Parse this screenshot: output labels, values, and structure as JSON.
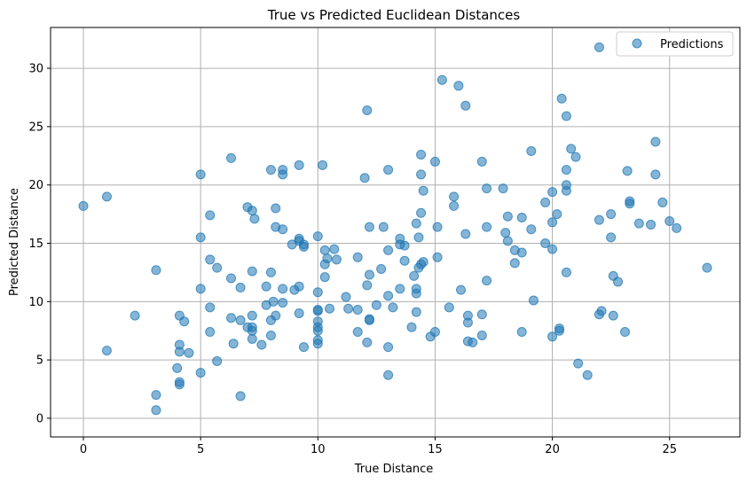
{
  "chart_data": {
    "type": "scatter",
    "title": "True vs Predicted Euclidean Distances",
    "xlabel": "True Distance",
    "ylabel": "Predicted Distance",
    "xlim": [
      -1.4,
      28.0
    ],
    "ylim": [
      -1.6,
      33.5
    ],
    "xticks": [
      0,
      5,
      10,
      15,
      20,
      25
    ],
    "yticks": [
      0,
      5,
      10,
      15,
      20,
      25,
      30
    ],
    "grid": true,
    "legend_position": "top-right",
    "marker_color": "#1f77b4",
    "series": [
      {
        "name": "Predictions",
        "points": [
          [
            0.0,
            18.2
          ],
          [
            1.0,
            19.0
          ],
          [
            1.0,
            5.8
          ],
          [
            2.2,
            8.8
          ],
          [
            3.1,
            12.7
          ],
          [
            3.1,
            2.0
          ],
          [
            3.1,
            0.7
          ],
          [
            4.0,
            4.3
          ],
          [
            4.1,
            8.8
          ],
          [
            4.1,
            6.3
          ],
          [
            4.1,
            5.7
          ],
          [
            4.1,
            3.1
          ],
          [
            4.1,
            2.9
          ],
          [
            4.3,
            8.3
          ],
          [
            4.5,
            5.6
          ],
          [
            5.0,
            20.9
          ],
          [
            5.0,
            15.5
          ],
          [
            5.0,
            11.1
          ],
          [
            5.0,
            3.9
          ],
          [
            5.4,
            17.4
          ],
          [
            5.4,
            13.6
          ],
          [
            5.4,
            9.5
          ],
          [
            5.4,
            7.4
          ],
          [
            5.7,
            12.9
          ],
          [
            5.7,
            4.9
          ],
          [
            6.3,
            22.3
          ],
          [
            6.3,
            12.0
          ],
          [
            6.3,
            8.6
          ],
          [
            6.4,
            6.4
          ],
          [
            6.7,
            11.2
          ],
          [
            6.7,
            8.4
          ],
          [
            6.7,
            1.9
          ],
          [
            7.0,
            18.1
          ],
          [
            7.0,
            7.8
          ],
          [
            7.2,
            17.8
          ],
          [
            7.2,
            12.6
          ],
          [
            7.2,
            8.8
          ],
          [
            7.2,
            7.8
          ],
          [
            7.2,
            7.5
          ],
          [
            7.2,
            6.8
          ],
          [
            7.3,
            17.1
          ],
          [
            7.6,
            6.3
          ],
          [
            7.8,
            11.3
          ],
          [
            7.8,
            9.7
          ],
          [
            8.0,
            21.3
          ],
          [
            8.0,
            12.5
          ],
          [
            8.0,
            8.4
          ],
          [
            8.0,
            7.1
          ],
          [
            8.1,
            10.0
          ],
          [
            8.2,
            18.0
          ],
          [
            8.2,
            16.4
          ],
          [
            8.2,
            8.8
          ],
          [
            8.5,
            21.3
          ],
          [
            8.5,
            20.9
          ],
          [
            8.5,
            16.2
          ],
          [
            8.5,
            11.1
          ],
          [
            8.5,
            9.9
          ],
          [
            8.9,
            14.9
          ],
          [
            9.0,
            11.0
          ],
          [
            9.2,
            21.7
          ],
          [
            9.2,
            15.4
          ],
          [
            9.2,
            15.2
          ],
          [
            9.2,
            11.3
          ],
          [
            9.2,
            9.0
          ],
          [
            9.4,
            14.9
          ],
          [
            9.4,
            14.7
          ],
          [
            9.4,
            6.1
          ],
          [
            10.0,
            15.6
          ],
          [
            10.0,
            10.8
          ],
          [
            10.0,
            9.3
          ],
          [
            10.0,
            9.2
          ],
          [
            10.0,
            8.3
          ],
          [
            10.0,
            7.8
          ],
          [
            10.0,
            7.5
          ],
          [
            10.0,
            6.7
          ],
          [
            10.0,
            6.4
          ],
          [
            10.2,
            21.7
          ],
          [
            10.3,
            14.4
          ],
          [
            10.3,
            13.2
          ],
          [
            10.3,
            12.1
          ],
          [
            10.4,
            13.7
          ],
          [
            10.5,
            9.4
          ],
          [
            10.7,
            14.5
          ],
          [
            10.8,
            13.6
          ],
          [
            11.2,
            10.4
          ],
          [
            11.3,
            9.4
          ],
          [
            11.7,
            13.8
          ],
          [
            11.7,
            9.3
          ],
          [
            11.7,
            7.4
          ],
          [
            12.0,
            20.6
          ],
          [
            12.1,
            26.4
          ],
          [
            12.1,
            11.4
          ],
          [
            12.1,
            6.5
          ],
          [
            12.2,
            16.4
          ],
          [
            12.2,
            12.3
          ],
          [
            12.2,
            8.5
          ],
          [
            12.2,
            8.4
          ],
          [
            12.5,
            9.7
          ],
          [
            12.7,
            12.8
          ],
          [
            12.8,
            16.4
          ],
          [
            13.0,
            21.3
          ],
          [
            13.0,
            14.4
          ],
          [
            13.0,
            10.5
          ],
          [
            13.0,
            6.1
          ],
          [
            13.0,
            3.7
          ],
          [
            13.2,
            9.5
          ],
          [
            13.5,
            15.4
          ],
          [
            13.5,
            14.9
          ],
          [
            13.5,
            11.1
          ],
          [
            13.7,
            14.8
          ],
          [
            13.7,
            13.5
          ],
          [
            14.0,
            7.8
          ],
          [
            14.1,
            12.2
          ],
          [
            14.2,
            16.7
          ],
          [
            14.2,
            11.1
          ],
          [
            14.2,
            10.7
          ],
          [
            14.2,
            9.1
          ],
          [
            14.3,
            15.5
          ],
          [
            14.3,
            12.9
          ],
          [
            14.4,
            22.6
          ],
          [
            14.4,
            20.9
          ],
          [
            14.4,
            17.6
          ],
          [
            14.4,
            13.2
          ],
          [
            14.5,
            19.5
          ],
          [
            14.5,
            13.4
          ],
          [
            14.8,
            7.0
          ],
          [
            15.0,
            22.0
          ],
          [
            15.0,
            7.4
          ],
          [
            15.1,
            16.4
          ],
          [
            15.1,
            13.8
          ],
          [
            15.3,
            29.0
          ],
          [
            15.6,
            9.5
          ],
          [
            15.8,
            19.0
          ],
          [
            15.8,
            18.2
          ],
          [
            16.0,
            28.5
          ],
          [
            16.1,
            11.0
          ],
          [
            16.3,
            26.8
          ],
          [
            16.3,
            15.8
          ],
          [
            16.4,
            8.8
          ],
          [
            16.4,
            8.2
          ],
          [
            16.4,
            6.6
          ],
          [
            16.6,
            6.5
          ],
          [
            17.0,
            22.0
          ],
          [
            17.0,
            8.9
          ],
          [
            17.0,
            7.1
          ],
          [
            17.2,
            19.7
          ],
          [
            17.2,
            16.4
          ],
          [
            17.2,
            11.8
          ],
          [
            17.9,
            19.7
          ],
          [
            18.0,
            15.9
          ],
          [
            18.1,
            17.3
          ],
          [
            18.1,
            15.2
          ],
          [
            18.4,
            14.4
          ],
          [
            18.4,
            13.3
          ],
          [
            18.7,
            17.2
          ],
          [
            18.7,
            14.2
          ],
          [
            18.7,
            7.4
          ],
          [
            19.1,
            22.9
          ],
          [
            19.1,
            16.2
          ],
          [
            19.2,
            10.1
          ],
          [
            19.7,
            18.5
          ],
          [
            19.7,
            15.0
          ],
          [
            20.0,
            19.4
          ],
          [
            20.0,
            16.8
          ],
          [
            20.0,
            14.5
          ],
          [
            20.0,
            7.0
          ],
          [
            20.2,
            17.5
          ],
          [
            20.3,
            7.7
          ],
          [
            20.3,
            7.5
          ],
          [
            20.4,
            27.4
          ],
          [
            20.6,
            25.9
          ],
          [
            20.6,
            21.3
          ],
          [
            20.6,
            20.0
          ],
          [
            20.6,
            19.5
          ],
          [
            20.6,
            12.5
          ],
          [
            20.8,
            23.1
          ],
          [
            21.0,
            22.4
          ],
          [
            21.1,
            4.7
          ],
          [
            21.5,
            3.7
          ],
          [
            22.0,
            31.8
          ],
          [
            22.0,
            17.0
          ],
          [
            22.0,
            8.9
          ],
          [
            22.1,
            9.2
          ],
          [
            22.5,
            17.5
          ],
          [
            22.5,
            15.5
          ],
          [
            22.6,
            12.2
          ],
          [
            22.6,
            8.8
          ],
          [
            22.8,
            11.7
          ],
          [
            23.1,
            7.4
          ],
          [
            23.2,
            21.2
          ],
          [
            23.3,
            18.6
          ],
          [
            23.3,
            18.4
          ],
          [
            23.7,
            16.7
          ],
          [
            24.2,
            16.6
          ],
          [
            24.4,
            23.7
          ],
          [
            24.4,
            20.9
          ],
          [
            24.7,
            18.5
          ],
          [
            25.0,
            16.9
          ],
          [
            25.3,
            16.3
          ],
          [
            26.6,
            12.9
          ]
        ]
      }
    ]
  }
}
